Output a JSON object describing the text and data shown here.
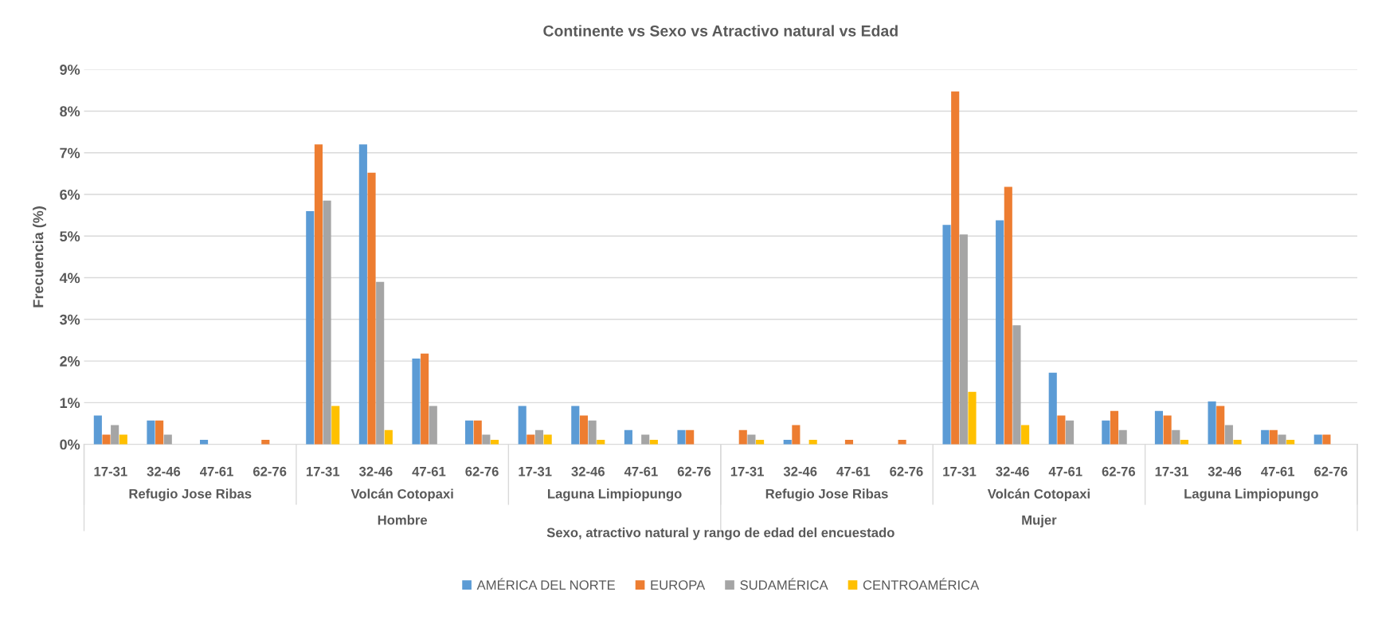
{
  "chart_data": {
    "type": "bar",
    "title": "Continente vs Sexo vs Atractivo natural vs Edad",
    "xlabel": "Sexo, atractivo natural y rango de edad del encuestado",
    "ylabel": "Frecuencia (%)",
    "categories": [
      "17-31",
      "32-46",
      "47-61",
      "62-76",
      "17-31",
      "32-46",
      "47-61",
      "62-76",
      "17-31",
      "32-46",
      "47-61",
      "62-76",
      "17-31",
      "32-46",
      "47-61",
      "62-76",
      "17-31",
      "32-46",
      "47-61",
      "62-76",
      "17-31",
      "32-46",
      "47-61",
      "62-76"
    ],
    "annotations": [
      "Refugio Jose Ribas",
      "Volcán Cotopaxi",
      "Laguna Limpiopungo",
      "Refugio Jose Ribas",
      "Volcán Cotopaxi",
      "Laguna Limpiopungo",
      "Hombre",
      "Mujer"
    ],
    "series": [
      {
        "name": "AMÉRICA DEL NORTE",
        "color": "#5b9bd5",
        "values": [
          0.69,
          0.57,
          0.11,
          0,
          5.6,
          7.2,
          2.06,
          0.57,
          0.92,
          0.92,
          0.34,
          0.34,
          0,
          0.11,
          0,
          0,
          5.27,
          5.38,
          1.72,
          0.57,
          0.8,
          1.03,
          0.34,
          0.23
        ]
      },
      {
        "name": "EUROPA",
        "color": "#ed7d31",
        "values": [
          0.23,
          0.57,
          0,
          0.11,
          7.2,
          6.52,
          2.18,
          0.57,
          0.23,
          0.69,
          0,
          0.34,
          0.34,
          0.46,
          0.11,
          0.11,
          8.47,
          6.18,
          0.69,
          0.8,
          0.69,
          0.92,
          0.34,
          0.23
        ]
      },
      {
        "name": "SUDAMÉRICA",
        "color": "#a5a5a5",
        "values": [
          0.46,
          0.23,
          0,
          0,
          5.85,
          3.9,
          0.92,
          0.23,
          0.34,
          0.57,
          0.23,
          0,
          0.23,
          0,
          0,
          0,
          5.04,
          2.86,
          0.57,
          0.34,
          0.34,
          0.46,
          0.23,
          0
        ]
      },
      {
        "name": "CENTROAMÉRICA",
        "color": "#ffc000",
        "values": [
          0.23,
          0,
          0,
          0,
          0.92,
          0.34,
          0,
          0.11,
          0.23,
          0.11,
          0.11,
          0,
          0.11,
          0.11,
          0,
          0,
          1.26,
          0.46,
          0,
          0,
          0.11,
          0.11,
          0.11,
          0
        ]
      }
    ],
    "ylim": [
      0,
      9
    ],
    "yticks": [
      {
        "value": 0,
        "label": "0%"
      },
      {
        "value": 1,
        "label": "1%"
      },
      {
        "value": 2,
        "label": "2%"
      },
      {
        "value": 3,
        "label": "3%"
      },
      {
        "value": 4,
        "label": "4%"
      },
      {
        "value": 5,
        "label": "5%"
      },
      {
        "value": 6,
        "label": "6%"
      },
      {
        "value": 7,
        "label": "7%"
      },
      {
        "value": 8,
        "label": "8%"
      },
      {
        "value": 9,
        "label": "9%"
      }
    ],
    "grid": "y",
    "legend": "bottom"
  }
}
